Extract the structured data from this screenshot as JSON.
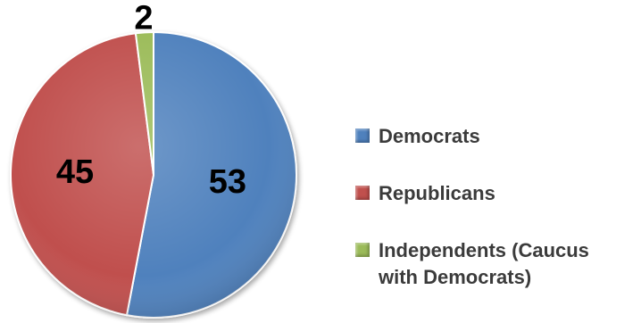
{
  "chart_data": {
    "type": "pie",
    "title": "",
    "slices": [
      {
        "label": "Democrats",
        "value": 53,
        "color": "#4f81bd"
      },
      {
        "label": "Republicans",
        "value": 45,
        "color": "#c0504d"
      },
      {
        "label": "Independents (Caucus with Democrats)",
        "value": 2,
        "color": "#9bbb59"
      }
    ],
    "legend_position": "right",
    "data_labels": true
  }
}
